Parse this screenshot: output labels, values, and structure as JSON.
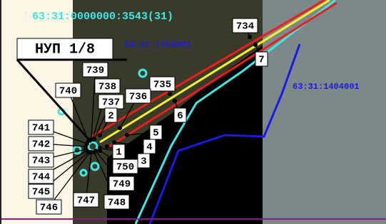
{
  "cadastral_labels": [
    "63:31:0000000:3543(31)",
    "63:31:1403001",
    "63:31:1404001"
  ],
  "title": "НУП 1/8",
  "point_labels": [
    "734",
    "7",
    "739",
    "738",
    "737",
    "735",
    "736",
    "740",
    "2",
    "6",
    "5",
    "4",
    "3",
    "1",
    "750",
    "741",
    "742",
    "743",
    "744",
    "745",
    "746",
    "747",
    "748",
    "749"
  ]
}
